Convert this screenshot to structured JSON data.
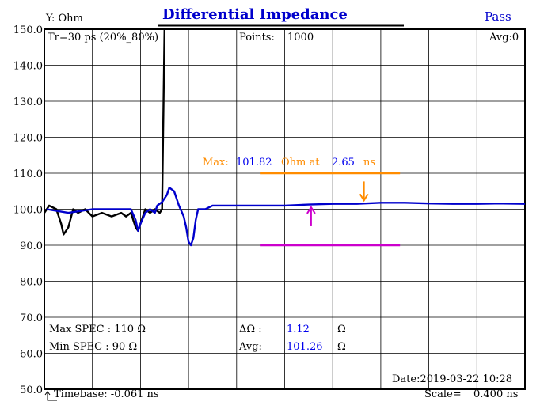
{
  "header": {
    "title": "Differential Impedance",
    "status": "Pass",
    "y_axis_title": "Y: Ohm"
  },
  "info": {
    "rise_time": "Tr=30  ps (20%_80%)",
    "points_label": "Points:",
    "points_value": "1000",
    "avg_count": "Avg:0"
  },
  "marker": {
    "max_prefix": "Max:",
    "max_value": "101.82",
    "ohm_at": "Ohm at",
    "time_value": "2.65",
    "time_unit": "ns"
  },
  "spec": {
    "max_label": "Max SPEC : 110 Ω",
    "min_label": "Min  SPEC : 90 Ω"
  },
  "stats": {
    "delta_label": "ΔΩ :",
    "delta_value": "1.12",
    "delta_unit": "Ω",
    "avg_label": "Avg:",
    "avg_value": "101.26",
    "avg_unit": "Ω"
  },
  "footer": {
    "date": "Date:2019-03-22 10:28",
    "timebase": "Timebase: -0.061  ns",
    "scale_label": "Scale=",
    "scale_value": "0.400 ns"
  },
  "colors": {
    "trace_black": "#000000",
    "trace_blue": "#0000cc",
    "marker_orange": "#ff8c00",
    "marker_magenta": "#cc00cc",
    "grid": "#000000"
  },
  "chart_data": {
    "type": "line",
    "title": "Differential Impedance",
    "ylabel": "Y: Ohm",
    "xlabel": "",
    "y_ticks": [
      "150.0",
      "140.0",
      "130.0",
      "120.0",
      "110.0",
      "100.0",
      "90.0",
      "80.0",
      "70.0",
      "60.0",
      "50.0"
    ],
    "ylim": [
      50,
      150
    ],
    "xlim": [
      0,
      10
    ],
    "x_divisions": 10,
    "grid": true,
    "series": [
      {
        "color": "#000000",
        "points": [
          [
            0,
            99
          ],
          [
            0.1,
            101
          ],
          [
            0.25,
            100
          ],
          [
            0.35,
            96
          ],
          [
            0.4,
            93
          ],
          [
            0.5,
            95
          ],
          [
            0.6,
            100
          ],
          [
            0.7,
            99
          ],
          [
            0.85,
            100
          ],
          [
            1.0,
            98
          ],
          [
            1.2,
            99
          ],
          [
            1.4,
            98
          ],
          [
            1.6,
            99
          ],
          [
            1.7,
            98
          ],
          [
            1.8,
            99
          ],
          [
            1.85,
            97
          ],
          [
            1.9,
            95
          ],
          [
            1.95,
            94
          ],
          [
            2.0,
            96
          ],
          [
            2.1,
            100
          ],
          [
            2.2,
            99
          ],
          [
            2.3,
            100
          ],
          [
            2.4,
            99
          ],
          [
            2.45,
            100
          ],
          [
            2.5,
            150
          ]
        ]
      },
      {
        "color": "#0000cc",
        "points": [
          [
            0.05,
            100
          ],
          [
            0.5,
            99
          ],
          [
            1.0,
            100
          ],
          [
            1.5,
            100
          ],
          [
            1.8,
            100
          ],
          [
            1.9,
            97
          ],
          [
            1.95,
            94
          ],
          [
            2.0,
            96
          ],
          [
            2.1,
            99
          ],
          [
            2.2,
            100
          ],
          [
            2.3,
            99
          ],
          [
            2.35,
            101
          ],
          [
            2.45,
            102
          ],
          [
            2.55,
            104
          ],
          [
            2.6,
            106
          ],
          [
            2.7,
            105
          ],
          [
            2.8,
            101
          ],
          [
            2.9,
            98
          ],
          [
            2.95,
            95
          ],
          [
            3.0,
            91
          ],
          [
            3.05,
            90
          ],
          [
            3.1,
            92
          ],
          [
            3.15,
            97
          ],
          [
            3.2,
            100
          ],
          [
            3.35,
            100
          ],
          [
            3.5,
            101
          ],
          [
            4,
            101
          ],
          [
            5,
            101
          ],
          [
            5.5,
            101.3
          ],
          [
            6,
            101.5
          ],
          [
            6.5,
            101.5
          ],
          [
            7,
            101.8
          ],
          [
            7.5,
            101.8
          ],
          [
            8,
            101.6
          ],
          [
            8.5,
            101.5
          ],
          [
            9,
            101.5
          ],
          [
            9.5,
            101.6
          ],
          [
            10,
            101.5
          ]
        ]
      }
    ],
    "annotations": [
      {
        "type": "hline",
        "y": 110,
        "x_range": [
          4.5,
          7.4
        ],
        "color": "#ff8c00"
      },
      {
        "type": "hline",
        "y": 90,
        "x_range": [
          4.5,
          7.4
        ],
        "color": "#cc00cc"
      },
      {
        "type": "arrow_down",
        "x": 6.65,
        "y": 102,
        "color": "#ff8c00"
      },
      {
        "type": "arrow_up",
        "x": 5.55,
        "y": 101,
        "color": "#cc00cc"
      }
    ]
  }
}
